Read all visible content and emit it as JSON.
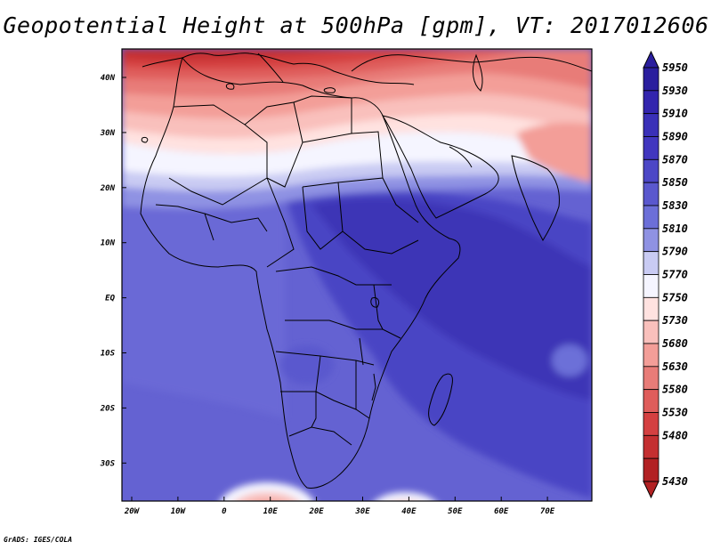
{
  "title": "Geopotential Height at 500hPa [gpm], VT: 2017012606",
  "credit": "GrADS: IGES/COLA",
  "map": {
    "variable": "Geopotential Height",
    "level": "500hPa",
    "units": "gpm",
    "valid_time": "2017012606",
    "lon_range": [
      -22,
      80
    ],
    "lat_range": [
      -37,
      45
    ],
    "x_ticks": [
      "20W",
      "10W",
      "0",
      "10E",
      "20E",
      "30E",
      "40E",
      "50E",
      "60E",
      "70E"
    ],
    "y_ticks": [
      "40N",
      "30N",
      "20N",
      "10N",
      "EQ",
      "10S",
      "20S",
      "30S"
    ]
  },
  "colorbar": {
    "labels": [
      "5950",
      "5930",
      "5910",
      "5890",
      "5870",
      "5850",
      "5830",
      "5810",
      "5790",
      "5770",
      "5750",
      "5730",
      "5680",
      "5630",
      "5580",
      "5530",
      "5480",
      "5430"
    ],
    "colors": [
      "#2a1e9e",
      "#3325ae",
      "#3a30b8",
      "#4136bf",
      "#4c47c6",
      "#5a58ce",
      "#6c6fd8",
      "#8f92e3",
      "#c9cbf3",
      "#f5f5ff",
      "#ffe2e0",
      "#f9c0bc",
      "#f39e98",
      "#e87c78",
      "#df5d5b",
      "#d44041",
      "#c42f31",
      "#b22123"
    ]
  }
}
